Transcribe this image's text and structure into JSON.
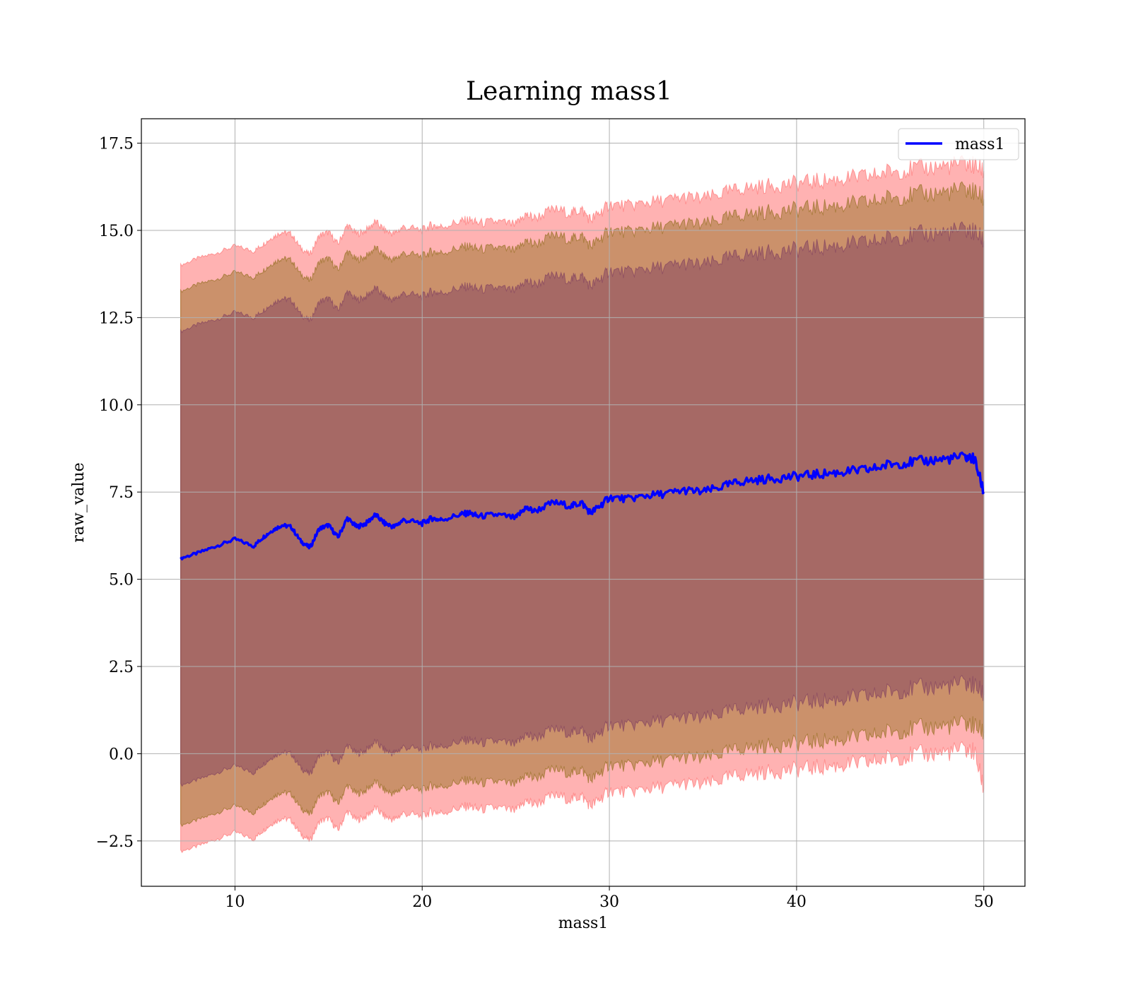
{
  "chart_data": {
    "type": "line",
    "title": "Learning mass1",
    "xlabel": "mass1",
    "ylabel": "raw_value",
    "xlim": [
      5,
      52.2
    ],
    "ylim": [
      -3.8,
      18.2
    ],
    "xticks": [
      10,
      20,
      30,
      40,
      50
    ],
    "xtick_labels": [
      "10",
      "20",
      "30",
      "40",
      "50"
    ],
    "yticks": [
      -2.5,
      0,
      2.5,
      5,
      7.5,
      10,
      12.5,
      15,
      17.5
    ],
    "ytick_labels": [
      "−2.5",
      "0.0",
      "2.5",
      "5.0",
      "7.5",
      "10.0",
      "12.5",
      "15.0",
      "17.5"
    ],
    "grid": true,
    "legend": {
      "position": "top-right",
      "entries": [
        "mass1"
      ]
    },
    "series": [
      {
        "name": "mass1",
        "color": "#0000ff",
        "x": [
          7.1,
          8,
          9,
          10,
          11,
          11.5,
          12,
          12.5,
          13,
          13.5,
          14,
          14.5,
          15,
          15.5,
          16,
          16.5,
          17,
          17.5,
          18,
          18.5,
          19,
          20,
          20.5,
          21,
          22,
          22.5,
          23,
          24,
          25,
          25.5,
          26,
          27,
          28,
          28.5,
          29,
          29.5,
          30,
          31,
          32,
          33,
          34,
          35,
          36,
          37,
          38,
          39,
          40,
          41,
          42,
          43,
          44,
          45,
          46,
          47,
          48,
          49,
          49.5,
          50
        ],
        "y": [
          5.6,
          5.75,
          5.95,
          6.15,
          5.95,
          6.2,
          6.4,
          6.55,
          6.5,
          6.1,
          5.9,
          6.45,
          6.55,
          6.2,
          6.75,
          6.5,
          6.6,
          6.85,
          6.6,
          6.5,
          6.7,
          6.6,
          6.75,
          6.7,
          6.85,
          6.9,
          6.8,
          6.85,
          6.75,
          7.05,
          6.95,
          7.2,
          7.1,
          7.2,
          6.9,
          7.1,
          7.35,
          7.3,
          7.4,
          7.45,
          7.55,
          7.5,
          7.65,
          7.8,
          7.85,
          7.9,
          7.95,
          8.0,
          8.05,
          8.1,
          8.15,
          8.3,
          8.35,
          8.4,
          8.45,
          8.5,
          8.45,
          7.5
        ]
      }
    ],
    "bands": [
      {
        "color": "#ff6666",
        "x": [
          7.1,
          8,
          9,
          10,
          11,
          11.5,
          12,
          12.5,
          13,
          13.5,
          14,
          14.5,
          15,
          15.5,
          16,
          16.5,
          17,
          17.5,
          18,
          18.5,
          19,
          20,
          20.5,
          21,
          22,
          22.5,
          23,
          24,
          25,
          25.5,
          26,
          27,
          28,
          28.5,
          29,
          29.5,
          30,
          31,
          32,
          33,
          34,
          35,
          36,
          37,
          38,
          39,
          40,
          41,
          42,
          43,
          44,
          45,
          46,
          47,
          48,
          49,
          49.5,
          50
        ],
        "upper": [
          14.0,
          14.2,
          14.35,
          14.55,
          14.4,
          14.6,
          14.8,
          14.95,
          14.9,
          14.5,
          14.3,
          14.85,
          14.95,
          14.6,
          15.15,
          14.9,
          15.0,
          15.25,
          15.0,
          14.9,
          15.1,
          15.0,
          15.15,
          15.1,
          15.25,
          15.3,
          15.2,
          15.25,
          15.15,
          15.45,
          15.35,
          15.6,
          15.5,
          15.6,
          15.3,
          15.5,
          15.75,
          15.7,
          15.8,
          15.85,
          15.95,
          15.9,
          16.05,
          16.2,
          16.25,
          16.3,
          16.35,
          16.4,
          16.45,
          16.5,
          16.55,
          16.7,
          16.75,
          16.8,
          16.85,
          16.9,
          16.85,
          16.7
        ],
        "lower": [
          -2.8,
          -2.65,
          -2.45,
          -2.25,
          -2.45,
          -2.2,
          -2.0,
          -1.85,
          -1.9,
          -2.3,
          -2.5,
          -1.95,
          -1.85,
          -2.2,
          -1.65,
          -1.9,
          -1.8,
          -1.55,
          -1.8,
          -1.9,
          -1.7,
          -1.8,
          -1.65,
          -1.7,
          -1.55,
          -1.5,
          -1.6,
          -1.55,
          -1.65,
          -1.35,
          -1.45,
          -1.2,
          -1.3,
          -1.2,
          -1.5,
          -1.3,
          -1.05,
          -1.1,
          -1.0,
          -0.95,
          -0.85,
          -0.9,
          -0.75,
          -0.6,
          -0.55,
          -0.5,
          -0.45,
          -0.4,
          -0.35,
          -0.3,
          -0.25,
          -0.1,
          -0.05,
          0.0,
          0.05,
          0.1,
          0.05,
          -1.0
        ]
      },
      {
        "color": "#8b6914",
        "x": [
          7.1,
          8,
          9,
          10,
          11,
          11.5,
          12,
          12.5,
          13,
          13.5,
          14,
          14.5,
          15,
          15.5,
          16,
          16.5,
          17,
          17.5,
          18,
          18.5,
          19,
          20,
          20.5,
          21,
          22,
          22.5,
          23,
          24,
          25,
          25.5,
          26,
          27,
          28,
          28.5,
          29,
          29.5,
          30,
          31,
          32,
          33,
          34,
          35,
          36,
          37,
          38,
          39,
          40,
          41,
          42,
          43,
          44,
          45,
          46,
          47,
          48,
          49,
          49.5,
          50
        ],
        "upper": [
          13.25,
          13.45,
          13.6,
          13.8,
          13.65,
          13.85,
          14.05,
          14.2,
          14.15,
          13.75,
          13.55,
          14.1,
          14.2,
          13.85,
          14.4,
          14.15,
          14.25,
          14.5,
          14.25,
          14.15,
          14.35,
          14.25,
          14.4,
          14.35,
          14.5,
          14.55,
          14.45,
          14.5,
          14.4,
          14.7,
          14.6,
          14.85,
          14.75,
          14.85,
          14.55,
          14.75,
          15.0,
          14.95,
          15.05,
          15.1,
          15.2,
          15.15,
          15.3,
          15.45,
          15.5,
          15.55,
          15.6,
          15.65,
          15.7,
          15.75,
          15.8,
          15.95,
          16.0,
          16.05,
          16.1,
          16.15,
          16.1,
          15.9
        ],
        "lower": [
          -2.05,
          -1.9,
          -1.7,
          -1.5,
          -1.7,
          -1.45,
          -1.25,
          -1.1,
          -1.15,
          -1.55,
          -1.75,
          -1.2,
          -1.1,
          -1.45,
          -0.9,
          -1.15,
          -1.05,
          -0.8,
          -1.05,
          -1.15,
          -0.95,
          -1.05,
          -0.9,
          -0.95,
          -0.8,
          -0.75,
          -0.85,
          -0.8,
          -0.9,
          -0.6,
          -0.7,
          -0.45,
          -0.55,
          -0.45,
          -0.75,
          -0.55,
          -0.3,
          -0.35,
          -0.25,
          -0.2,
          -0.1,
          -0.15,
          0.0,
          0.15,
          0.2,
          0.25,
          0.3,
          0.35,
          0.4,
          0.45,
          0.5,
          0.65,
          0.7,
          0.75,
          0.8,
          0.85,
          0.8,
          0.6
        ]
      },
      {
        "color": "#7b3a5f",
        "x": [
          7.1,
          8,
          9,
          10,
          11,
          11.5,
          12,
          12.5,
          13,
          13.5,
          14,
          14.5,
          15,
          15.5,
          16,
          16.5,
          17,
          17.5,
          18,
          18.5,
          19,
          20,
          20.5,
          21,
          22,
          22.5,
          23,
          24,
          25,
          25.5,
          26,
          27,
          28,
          28.5,
          29,
          29.5,
          30,
          31,
          32,
          33,
          34,
          35,
          36,
          37,
          38,
          39,
          40,
          41,
          42,
          43,
          44,
          45,
          46,
          47,
          48,
          49,
          49.5,
          50
        ],
        "upper": [
          12.1,
          12.3,
          12.45,
          12.65,
          12.5,
          12.7,
          12.9,
          13.05,
          13.0,
          12.6,
          12.4,
          12.95,
          13.05,
          12.7,
          13.25,
          13.0,
          13.1,
          13.35,
          13.1,
          13.0,
          13.2,
          13.1,
          13.25,
          13.2,
          13.35,
          13.4,
          13.3,
          13.35,
          13.25,
          13.55,
          13.45,
          13.7,
          13.6,
          13.7,
          13.4,
          13.6,
          13.85,
          13.8,
          13.9,
          13.95,
          14.05,
          14.0,
          14.15,
          14.3,
          14.35,
          14.4,
          14.45,
          14.5,
          14.55,
          14.6,
          14.65,
          14.8,
          14.85,
          14.9,
          14.95,
          15.0,
          14.95,
          14.7
        ],
        "lower": [
          -0.9,
          -0.75,
          -0.55,
          -0.35,
          -0.55,
          -0.3,
          -0.1,
          0.05,
          0.0,
          -0.4,
          -0.6,
          -0.05,
          0.05,
          -0.3,
          0.25,
          0.0,
          0.1,
          0.35,
          0.1,
          0.0,
          0.2,
          0.1,
          0.25,
          0.2,
          0.35,
          0.4,
          0.3,
          0.35,
          0.25,
          0.55,
          0.45,
          0.7,
          0.6,
          0.7,
          0.4,
          0.6,
          0.85,
          0.8,
          0.9,
          0.95,
          1.05,
          1.0,
          1.15,
          1.3,
          1.35,
          1.4,
          1.45,
          1.5,
          1.55,
          1.6,
          1.65,
          1.8,
          1.85,
          1.9,
          1.95,
          2.0,
          1.95,
          1.7
        ]
      }
    ]
  }
}
